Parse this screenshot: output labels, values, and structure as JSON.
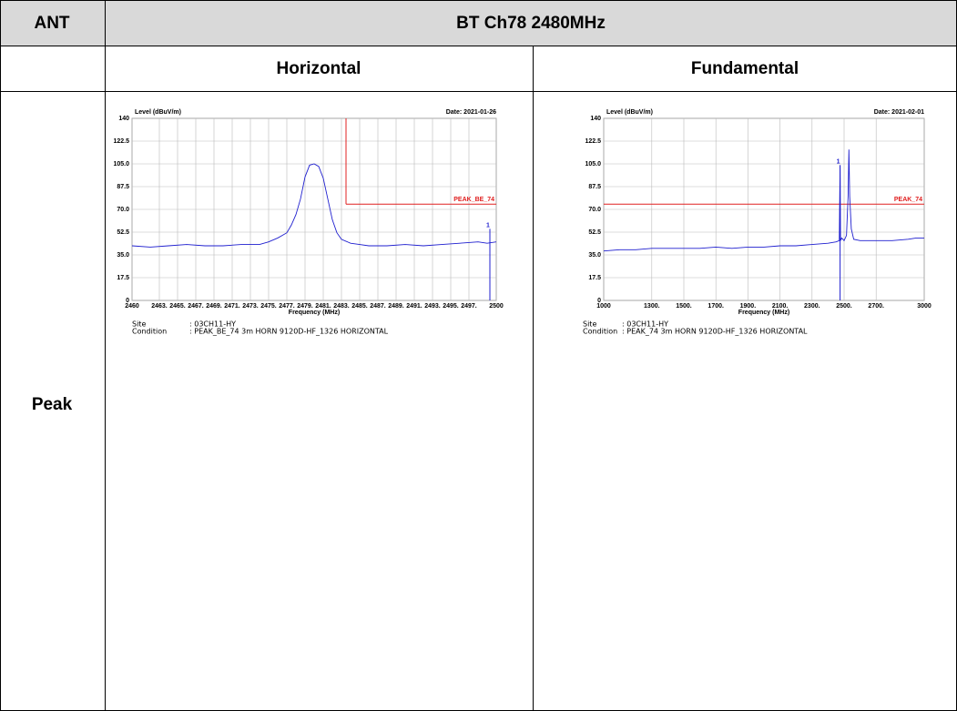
{
  "table": {
    "header": [
      "ANT",
      "BT Ch78 2480MHz"
    ],
    "subheader": [
      "Horizontal",
      "Fundamental"
    ],
    "row_label": "Peak"
  },
  "chart_data": [
    {
      "type": "line",
      "y_label": "Level (dBuV/m)",
      "date": "Date: 2021-01-26",
      "x_label": "Frequency (MHz)",
      "xlim": [
        2460,
        2500
      ],
      "ylim": [
        0,
        140
      ],
      "xticks": [
        2460,
        {
          "value": 2463,
          "label": "2463."
        },
        {
          "value": 2465,
          "label": "2465."
        },
        {
          "value": 2467,
          "label": "2467."
        },
        {
          "value": 2469,
          "label": "2469."
        },
        {
          "value": 2471,
          "label": "2471."
        },
        {
          "value": 2473,
          "label": "2473."
        },
        {
          "value": 2475,
          "label": "2475."
        },
        {
          "value": 2477,
          "label": "2477."
        },
        {
          "value": 2479,
          "label": "2479."
        },
        {
          "value": 2481,
          "label": "2481."
        },
        {
          "value": 2483,
          "label": "2483."
        },
        {
          "value": 2485,
          "label": "2485."
        },
        {
          "value": 2487,
          "label": "2487."
        },
        {
          "value": 2489,
          "label": "2489."
        },
        {
          "value": 2491,
          "label": "2491."
        },
        {
          "value": 2493,
          "label": "2493."
        },
        {
          "value": 2495,
          "label": "2495."
        },
        {
          "value": 2497,
          "label": "2497."
        },
        2500
      ],
      "yticks": [
        0,
        17.5,
        {
          "value": 35,
          "label": "35.0"
        },
        52.5,
        {
          "value": 70,
          "label": "70.0"
        },
        87.5,
        {
          "value": 105,
          "label": "105.0"
        },
        122.5,
        140
      ],
      "grid": true,
      "series": [
        {
          "color": "#1f1fcf",
          "x": [
            2460,
            2462,
            2464,
            2466,
            2468,
            2470,
            2472,
            2474,
            2475,
            2476,
            2477,
            2477.5,
            2478,
            2478.5,
            2479,
            2479.5,
            2480,
            2480.5,
            2481,
            2481.5,
            2482,
            2482.5,
            2483,
            2484,
            2485,
            2486,
            2488,
            2490,
            2492,
            2494,
            2496,
            2498,
            2499,
            2500
          ],
          "values": [
            42,
            41,
            42,
            43,
            42,
            42,
            43,
            43,
            45,
            48,
            52,
            58,
            66,
            78,
            95,
            104,
            105,
            103,
            94,
            78,
            62,
            52,
            47,
            44,
            43,
            42,
            42,
            43,
            42,
            43,
            44,
            45,
            44,
            45
          ]
        }
      ],
      "limit": {
        "label": "PEAK_BE_74",
        "value": 74,
        "x_start": 2483.5,
        "color": "#e02020"
      },
      "marker": {
        "label": "1",
        "x": 2499.3,
        "value": 55
      },
      "notes": [
        [
          "Site",
          ": 03CH11-HY"
        ],
        [
          "Condition",
          ": PEAK_BE_74 3m HORN 9120D-HF_1326 HORIZONTAL"
        ]
      ]
    },
    {
      "type": "line",
      "y_label": "Level (dBuV/m)",
      "date": "Date: 2021-02-01",
      "x_label": "Frequency (MHz)",
      "xlim": [
        1000,
        3000
      ],
      "ylim": [
        0,
        140
      ],
      "xticks": [
        1000,
        {
          "value": 1300,
          "label": "1300."
        },
        {
          "value": 1500,
          "label": "1500."
        },
        {
          "value": 1700,
          "label": "1700."
        },
        {
          "value": 1900,
          "label": "1900."
        },
        {
          "value": 2100,
          "label": "2100."
        },
        {
          "value": 2300,
          "label": "2300."
        },
        {
          "value": 2500,
          "label": "2500."
        },
        {
          "value": 2700,
          "label": "2700."
        },
        3000
      ],
      "yticks": [
        0,
        17.5,
        {
          "value": 35,
          "label": "35.0"
        },
        52.5,
        {
          "value": 70,
          "label": "70.0"
        },
        87.5,
        {
          "value": 105,
          "label": "105.0"
        },
        122.5,
        140
      ],
      "grid": true,
      "series": [
        {
          "color": "#1f1fcf",
          "x": [
            1000,
            1100,
            1200,
            1300,
            1400,
            1500,
            1600,
            1700,
            1800,
            1900,
            2000,
            2100,
            2200,
            2300,
            2400,
            2450,
            2470,
            2475,
            2478,
            2485,
            2500,
            2515,
            2525,
            2530,
            2535,
            2545,
            2560,
            2600,
            2700,
            2800,
            2900,
            2950,
            3000
          ],
          "values": [
            38,
            39,
            39,
            40,
            40,
            40,
            40,
            41,
            40,
            41,
            41,
            42,
            42,
            43,
            44,
            45,
            46,
            104,
            46,
            48,
            46,
            50,
            80,
            116,
            80,
            55,
            47,
            46,
            46,
            46,
            47,
            48,
            48
          ]
        }
      ],
      "limit": {
        "label": "PEAK_74",
        "value": 74,
        "x_start": 1000,
        "color": "#e02020"
      },
      "marker": {
        "label": "1",
        "x": 2475,
        "value": 104
      },
      "notes": [
        [
          "Site",
          ": 03CH11-HY"
        ],
        [
          "Condition",
          ": PEAK_74 3m HORN 9120D-HF_1326 HORIZONTAL"
        ]
      ]
    }
  ]
}
